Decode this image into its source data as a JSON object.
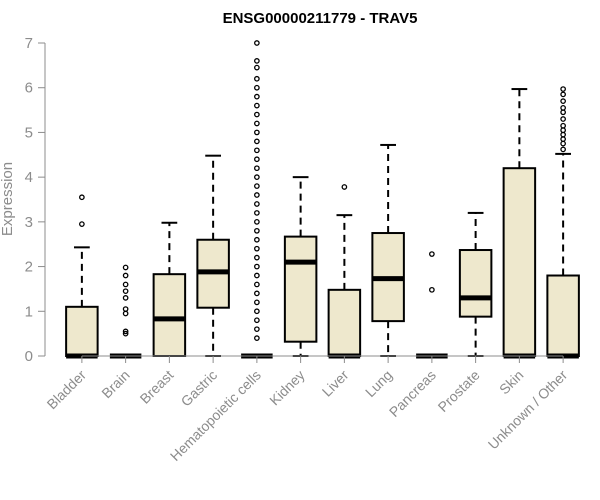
{
  "chart_data": {
    "type": "box",
    "title": "ENSG00000211779 - TRAV5",
    "xlabel": "",
    "ylabel": "Expression",
    "ylim": [
      0,
      7
    ],
    "yticks": [
      0,
      1,
      2,
      3,
      4,
      5,
      6,
      7
    ],
    "grid": false,
    "box_fill": "#eee8cd",
    "categories": [
      "Bladder",
      "Brain",
      "Breast",
      "Gastric",
      "Hematopoietic cells",
      "Kidney",
      "Liver",
      "Lung",
      "Pancreas",
      "Prostate",
      "Skin",
      "Unknown / Other"
    ],
    "boxes": [
      {
        "min": 0,
        "q1": 0,
        "median": 0,
        "q3": 1.1,
        "max": 2.43,
        "outliers": [
          2.95,
          3.55
        ]
      },
      {
        "min": 0,
        "q1": 0,
        "median": 0,
        "q3": 0,
        "max": 0,
        "outliers": [
          0.5,
          0.55,
          0.95,
          1.05,
          1.3,
          1.45,
          1.6,
          1.8,
          1.98
        ]
      },
      {
        "min": 0,
        "q1": 0,
        "median": 0.83,
        "q3": 1.83,
        "max": 2.98,
        "outliers": []
      },
      {
        "min": 0,
        "q1": 1.08,
        "median": 1.88,
        "q3": 2.6,
        "max": 4.48,
        "outliers": []
      },
      {
        "min": 0,
        "q1": 0,
        "median": 0,
        "q3": 0,
        "max": 0,
        "outliers": [
          0.4,
          0.6,
          0.8,
          1.0,
          1.2,
          1.4,
          1.6,
          1.8,
          2.0,
          2.2,
          2.4,
          2.6,
          2.8,
          3.0,
          3.2,
          3.4,
          3.6,
          3.8,
          4.0,
          4.2,
          4.4,
          4.6,
          4.8,
          5.0,
          5.2,
          5.4,
          5.6,
          5.8,
          6.0,
          6.2,
          6.45,
          6.6,
          7.0
        ]
      },
      {
        "min": 0,
        "q1": 0.32,
        "median": 2.1,
        "q3": 2.67,
        "max": 4.0,
        "outliers": []
      },
      {
        "min": 0,
        "q1": 0,
        "median": 0,
        "q3": 1.48,
        "max": 3.15,
        "outliers": [
          3.78
        ]
      },
      {
        "min": 0,
        "q1": 0.78,
        "median": 1.73,
        "q3": 2.75,
        "max": 4.72,
        "outliers": []
      },
      {
        "min": 0,
        "q1": 0,
        "median": 0,
        "q3": 0,
        "max": 0,
        "outliers": [
          1.48,
          2.28
        ]
      },
      {
        "min": 0,
        "q1": 0.88,
        "median": 1.3,
        "q3": 2.37,
        "max": 3.2,
        "outliers": []
      },
      {
        "min": 0,
        "q1": 0,
        "median": 0,
        "q3": 4.2,
        "max": 5.97,
        "outliers": []
      },
      {
        "min": 0,
        "q1": 0,
        "median": 0,
        "q3": 1.8,
        "max": 4.52,
        "outliers": [
          4.62,
          4.75,
          4.85,
          4.95,
          5.05,
          5.15,
          5.3,
          5.45,
          5.55,
          5.7,
          5.85,
          5.97
        ]
      }
    ]
  }
}
